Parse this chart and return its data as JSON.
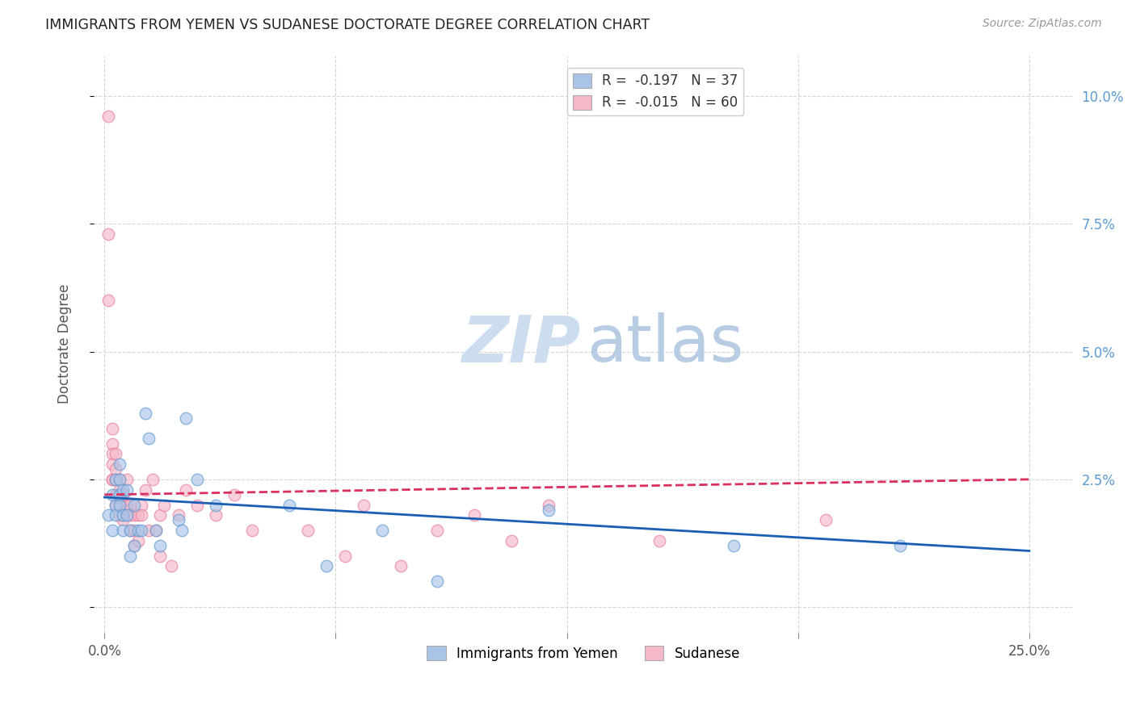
{
  "title": "IMMIGRANTS FROM YEMEN VS SUDANESE DOCTORATE DEGREE CORRELATION CHART",
  "source": "Source: ZipAtlas.com",
  "ylabel": "Doctorate Degree",
  "xlim": [
    -0.003,
    0.262
  ],
  "ylim": [
    -0.005,
    0.108
  ],
  "legend_entries": [
    {
      "label": "R =  -0.197   N = 37"
    },
    {
      "label": "R =  -0.015   N = 60"
    }
  ],
  "legend_bottom": [
    {
      "label": "Immigrants from Yemen"
    },
    {
      "label": "Sudanese"
    }
  ],
  "blue_scatter": [
    [
      0.001,
      0.018
    ],
    [
      0.002,
      0.022
    ],
    [
      0.002,
      0.015
    ],
    [
      0.003,
      0.02
    ],
    [
      0.003,
      0.025
    ],
    [
      0.003,
      0.018
    ],
    [
      0.004,
      0.022
    ],
    [
      0.004,
      0.025
    ],
    [
      0.004,
      0.028
    ],
    [
      0.004,
      0.02
    ],
    [
      0.005,
      0.023
    ],
    [
      0.005,
      0.018
    ],
    [
      0.005,
      0.015
    ],
    [
      0.006,
      0.023
    ],
    [
      0.006,
      0.018
    ],
    [
      0.007,
      0.015
    ],
    [
      0.007,
      0.01
    ],
    [
      0.008,
      0.012
    ],
    [
      0.008,
      0.02
    ],
    [
      0.009,
      0.015
    ],
    [
      0.01,
      0.015
    ],
    [
      0.011,
      0.038
    ],
    [
      0.012,
      0.033
    ],
    [
      0.014,
      0.015
    ],
    [
      0.015,
      0.012
    ],
    [
      0.02,
      0.017
    ],
    [
      0.021,
      0.015
    ],
    [
      0.022,
      0.037
    ],
    [
      0.025,
      0.025
    ],
    [
      0.03,
      0.02
    ],
    [
      0.05,
      0.02
    ],
    [
      0.06,
      0.008
    ],
    [
      0.075,
      0.015
    ],
    [
      0.09,
      0.005
    ],
    [
      0.12,
      0.019
    ],
    [
      0.17,
      0.012
    ],
    [
      0.215,
      0.012
    ]
  ],
  "pink_scatter": [
    [
      0.001,
      0.096
    ],
    [
      0.001,
      0.073
    ],
    [
      0.001,
      0.06
    ],
    [
      0.002,
      0.035
    ],
    [
      0.002,
      0.032
    ],
    [
      0.002,
      0.03
    ],
    [
      0.002,
      0.028
    ],
    [
      0.002,
      0.025
    ],
    [
      0.002,
      0.025
    ],
    [
      0.003,
      0.03
    ],
    [
      0.003,
      0.027
    ],
    [
      0.003,
      0.025
    ],
    [
      0.003,
      0.022
    ],
    [
      0.003,
      0.02
    ],
    [
      0.004,
      0.025
    ],
    [
      0.004,
      0.023
    ],
    [
      0.004,
      0.022
    ],
    [
      0.004,
      0.02
    ],
    [
      0.004,
      0.018
    ],
    [
      0.005,
      0.022
    ],
    [
      0.005,
      0.022
    ],
    [
      0.005,
      0.018
    ],
    [
      0.005,
      0.017
    ],
    [
      0.006,
      0.02
    ],
    [
      0.006,
      0.019
    ],
    [
      0.006,
      0.025
    ],
    [
      0.007,
      0.02
    ],
    [
      0.007,
      0.018
    ],
    [
      0.007,
      0.015
    ],
    [
      0.008,
      0.018
    ],
    [
      0.008,
      0.015
    ],
    [
      0.008,
      0.012
    ],
    [
      0.009,
      0.018
    ],
    [
      0.009,
      0.013
    ],
    [
      0.01,
      0.02
    ],
    [
      0.01,
      0.018
    ],
    [
      0.011,
      0.023
    ],
    [
      0.012,
      0.015
    ],
    [
      0.013,
      0.025
    ],
    [
      0.014,
      0.015
    ],
    [
      0.015,
      0.018
    ],
    [
      0.015,
      0.01
    ],
    [
      0.016,
      0.02
    ],
    [
      0.018,
      0.008
    ],
    [
      0.02,
      0.018
    ],
    [
      0.022,
      0.023
    ],
    [
      0.025,
      0.02
    ],
    [
      0.03,
      0.018
    ],
    [
      0.035,
      0.022
    ],
    [
      0.04,
      0.015
    ],
    [
      0.055,
      0.015
    ],
    [
      0.065,
      0.01
    ],
    [
      0.07,
      0.02
    ],
    [
      0.08,
      0.008
    ],
    [
      0.09,
      0.015
    ],
    [
      0.1,
      0.018
    ],
    [
      0.11,
      0.013
    ],
    [
      0.12,
      0.02
    ],
    [
      0.15,
      0.013
    ],
    [
      0.195,
      0.017
    ]
  ],
  "blue_line": [
    [
      0.0,
      0.0215
    ],
    [
      0.25,
      0.011
    ]
  ],
  "pink_line": [
    [
      0.0,
      0.022
    ],
    [
      0.25,
      0.025
    ]
  ],
  "blue_scatter_color": "#aac4e8",
  "pink_scatter_color": "#f4b8c8",
  "blue_edge_color": "#5b9bd5",
  "pink_edge_color": "#e87d9a",
  "blue_line_color": "#1a5fb4",
  "pink_line_color": "#d93060",
  "background_color": "#ffffff",
  "grid_color": "#cccccc",
  "title_color": "#222222",
  "source_color": "#999999",
  "right_axis_color": "#5b9bd5",
  "marker_size": 110,
  "marker_alpha": 0.65
}
